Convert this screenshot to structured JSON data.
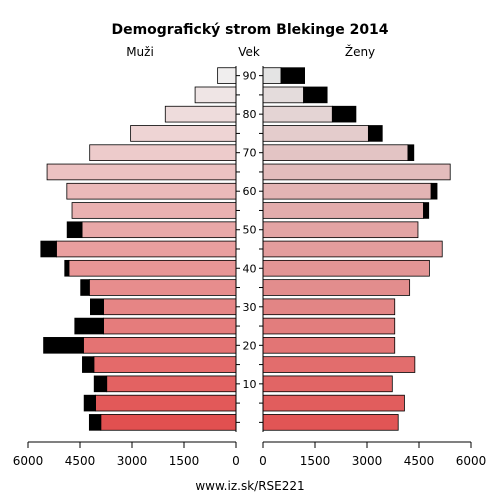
{
  "chart_data": {
    "type": "bar",
    "title": "Demografický strom Blekinge 2014",
    "left_label": "Muži",
    "center_label": "Vek",
    "right_label": "Ženy",
    "footer": "www.iz.sk/RSE221",
    "age_ticks": [
      "10",
      "20",
      "30",
      "40",
      "50",
      "60",
      "70",
      "80",
      "90"
    ],
    "x_ticks_left": [
      "6000",
      "4500",
      "3000",
      "1500",
      "0"
    ],
    "x_ticks_right": [
      "0",
      "1500",
      "3000",
      "4500",
      "6000"
    ],
    "xlim": [
      0,
      6000
    ],
    "categories": [
      "0-4",
      "5-9",
      "10-14",
      "15-19",
      "20-24",
      "25-29",
      "30-34",
      "35-39",
      "40-44",
      "45-49",
      "50-54",
      "55-59",
      "60-64",
      "65-69",
      "70-74",
      "75-79",
      "80-84",
      "85-89",
      "90+"
    ],
    "series": [
      {
        "name": "Muži",
        "values": [
          3900,
          4050,
          3730,
          4100,
          4400,
          3820,
          3820,
          4230,
          4820,
          5180,
          4440,
          4730,
          4880,
          5450,
          4220,
          3040,
          2040,
          1180,
          530
        ],
        "overhang": [
          330,
          330,
          360,
          330,
          1150,
          830,
          380,
          250,
          120,
          450,
          430,
          0,
          0,
          0,
          0,
          0,
          0,
          0,
          0
        ]
      },
      {
        "name": "Ženy",
        "values": [
          3900,
          4080,
          3730,
          4380,
          3800,
          3800,
          3800,
          4230,
          4800,
          5170,
          4470,
          4630,
          4850,
          5400,
          4180,
          3040,
          2000,
          1170,
          520
        ],
        "overhang": [
          0,
          0,
          0,
          0,
          0,
          0,
          0,
          0,
          0,
          0,
          0,
          150,
          170,
          0,
          170,
          400,
          680,
          680,
          680
        ]
      }
    ]
  }
}
